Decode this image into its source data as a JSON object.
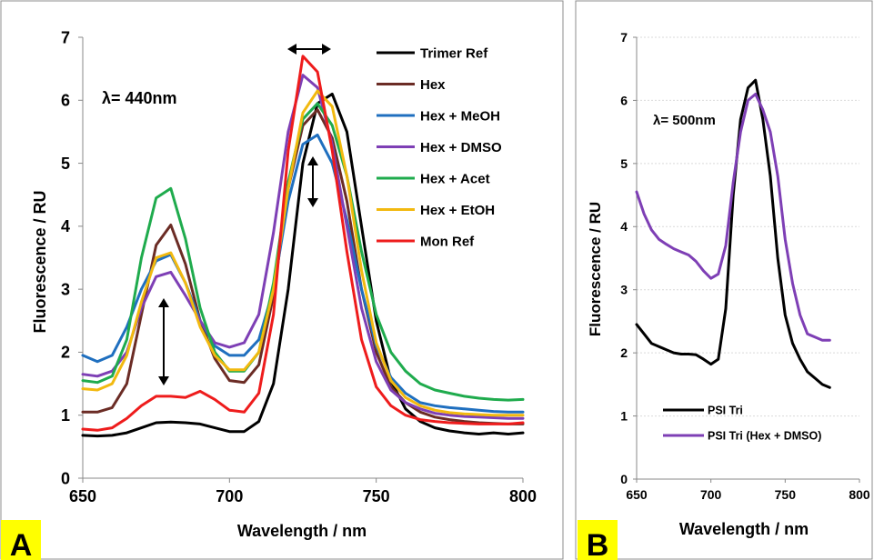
{
  "chart_data": [
    {
      "type": "line",
      "panel_label": "A",
      "badge_color": "#ffff00",
      "annotation": "λ= 440nm",
      "xlabel": "Wavelength / nm",
      "ylabel": "Fluorescence  / RU",
      "xlim": [
        650,
        800
      ],
      "ylim": [
        0,
        7
      ],
      "xticks": [
        650,
        700,
        750,
        800
      ],
      "yticks": [
        0,
        1,
        2,
        3,
        4,
        5,
        6,
        7
      ],
      "grid": false,
      "legend_position": "right",
      "series": [
        {
          "name": "Trimer Ref",
          "color": "#000000",
          "x": [
            650,
            655,
            660,
            665,
            670,
            675,
            680,
            685,
            690,
            695,
            700,
            705,
            710,
            715,
            720,
            725,
            730,
            735,
            740,
            745,
            750,
            755,
            760,
            765,
            770,
            775,
            780,
            785,
            790,
            795,
            800
          ],
          "y": [
            0.68,
            0.67,
            0.68,
            0.72,
            0.8,
            0.88,
            0.89,
            0.88,
            0.86,
            0.8,
            0.74,
            0.74,
            0.9,
            1.5,
            3.0,
            5.0,
            5.95,
            6.1,
            5.5,
            4.0,
            2.5,
            1.55,
            1.1,
            0.9,
            0.8,
            0.75,
            0.72,
            0.7,
            0.72,
            0.7,
            0.72
          ]
        },
        {
          "name": "Hex",
          "color": "#6b2c25",
          "x": [
            650,
            655,
            660,
            665,
            670,
            675,
            680,
            685,
            690,
            695,
            700,
            705,
            710,
            715,
            720,
            725,
            730,
            735,
            740,
            745,
            750,
            755,
            760,
            765,
            770,
            775,
            780,
            785,
            790,
            795,
            800
          ],
          "y": [
            1.05,
            1.05,
            1.12,
            1.5,
            2.6,
            3.7,
            4.02,
            3.4,
            2.5,
            1.9,
            1.55,
            1.52,
            1.8,
            2.9,
            4.6,
            5.6,
            5.85,
            5.4,
            4.4,
            3.0,
            2.0,
            1.45,
            1.2,
            1.05,
            0.97,
            0.93,
            0.9,
            0.88,
            0.87,
            0.86,
            0.86
          ]
        },
        {
          "name": "Hex + MeOH",
          "color": "#1f6fbf",
          "x": [
            650,
            655,
            660,
            665,
            670,
            675,
            680,
            685,
            690,
            695,
            700,
            705,
            710,
            715,
            720,
            725,
            730,
            735,
            740,
            745,
            750,
            755,
            760,
            765,
            770,
            775,
            780,
            785,
            790,
            795,
            800
          ],
          "y": [
            1.95,
            1.85,
            1.95,
            2.4,
            3.0,
            3.45,
            3.55,
            3.1,
            2.5,
            2.1,
            1.95,
            1.95,
            2.2,
            3.0,
            4.4,
            5.3,
            5.45,
            5.0,
            4.1,
            3.0,
            2.1,
            1.6,
            1.35,
            1.2,
            1.15,
            1.12,
            1.1,
            1.08,
            1.06,
            1.05,
            1.05
          ]
        },
        {
          "name": "Hex + DMSO",
          "color": "#7e3fb5",
          "x": [
            650,
            655,
            660,
            665,
            670,
            675,
            680,
            685,
            690,
            695,
            700,
            705,
            710,
            715,
            720,
            725,
            730,
            735,
            740,
            745,
            750,
            755,
            760,
            765,
            770,
            775,
            780,
            785,
            790,
            795,
            800
          ],
          "y": [
            1.65,
            1.62,
            1.7,
            2.0,
            2.7,
            3.2,
            3.27,
            2.9,
            2.5,
            2.15,
            2.08,
            2.15,
            2.6,
            3.9,
            5.5,
            6.4,
            6.2,
            5.3,
            4.0,
            2.7,
            1.85,
            1.4,
            1.2,
            1.1,
            1.03,
            1.0,
            0.98,
            0.97,
            0.96,
            0.95,
            0.95
          ]
        },
        {
          "name": "Hex + Acet",
          "color": "#1fab4d",
          "x": [
            650,
            655,
            660,
            665,
            670,
            675,
            680,
            685,
            690,
            695,
            700,
            705,
            710,
            715,
            720,
            725,
            730,
            735,
            740,
            745,
            750,
            755,
            760,
            765,
            770,
            775,
            780,
            785,
            790,
            795,
            800
          ],
          "y": [
            1.55,
            1.52,
            1.62,
            2.2,
            3.5,
            4.45,
            4.6,
            3.8,
            2.7,
            2.0,
            1.7,
            1.7,
            2.0,
            3.1,
            4.7,
            5.7,
            5.95,
            5.6,
            4.8,
            3.6,
            2.6,
            2.0,
            1.7,
            1.5,
            1.4,
            1.35,
            1.3,
            1.27,
            1.25,
            1.24,
            1.25
          ]
        },
        {
          "name": "Hex + EtOH",
          "color": "#f2b90f",
          "x": [
            650,
            655,
            660,
            665,
            670,
            675,
            680,
            685,
            690,
            695,
            700,
            705,
            710,
            715,
            720,
            725,
            730,
            735,
            740,
            745,
            750,
            755,
            760,
            765,
            770,
            775,
            780,
            785,
            790,
            795,
            800
          ],
          "y": [
            1.42,
            1.4,
            1.5,
            1.95,
            2.8,
            3.5,
            3.58,
            3.1,
            2.4,
            1.95,
            1.72,
            1.72,
            2.0,
            3.0,
            4.6,
            5.8,
            6.15,
            5.9,
            4.8,
            3.3,
            2.15,
            1.55,
            1.28,
            1.15,
            1.08,
            1.04,
            1.02,
            1.01,
            1.0,
            1.0,
            1.0
          ]
        },
        {
          "name": "Mon Ref",
          "color": "#ee1c1c",
          "x": [
            650,
            655,
            660,
            665,
            670,
            675,
            680,
            685,
            690,
            695,
            700,
            705,
            710,
            715,
            720,
            725,
            730,
            735,
            740,
            745,
            750,
            755,
            760,
            765,
            770,
            775,
            780,
            785,
            790,
            795,
            800
          ],
          "y": [
            0.78,
            0.76,
            0.8,
            0.95,
            1.15,
            1.3,
            1.3,
            1.28,
            1.38,
            1.25,
            1.08,
            1.05,
            1.35,
            2.6,
            5.2,
            6.7,
            6.45,
            5.2,
            3.6,
            2.2,
            1.45,
            1.15,
            1.0,
            0.93,
            0.9,
            0.88,
            0.87,
            0.86,
            0.86,
            0.86,
            0.88
          ]
        }
      ]
    },
    {
      "type": "line",
      "panel_label": "B",
      "badge_color": "#ffff00",
      "annotation": "λ= 500nm",
      "xlabel": "Wavelength / nm",
      "ylabel": "Fluorescence / RU",
      "xlim": [
        650,
        800
      ],
      "ylim": [
        0,
        7
      ],
      "xticks": [
        650,
        700,
        750,
        800
      ],
      "yticks": [
        0,
        1,
        2,
        3,
        4,
        5,
        6,
        7
      ],
      "grid": true,
      "legend_position": "bottom",
      "series": [
        {
          "name": "PSI Tri",
          "color": "#000000",
          "x": [
            650,
            655,
            660,
            665,
            670,
            675,
            680,
            685,
            690,
            695,
            700,
            705,
            710,
            715,
            720,
            725,
            730,
            735,
            740,
            745,
            750,
            755,
            760,
            765,
            770,
            775,
            780
          ],
          "y": [
            2.45,
            2.3,
            2.15,
            2.1,
            2.05,
            2.0,
            1.98,
            1.98,
            1.97,
            1.9,
            1.82,
            1.9,
            2.7,
            4.5,
            5.7,
            6.2,
            6.32,
            5.7,
            4.8,
            3.5,
            2.6,
            2.15,
            1.9,
            1.7,
            1.6,
            1.5,
            1.45
          ]
        },
        {
          "name": "PSI Tri (Hex + DMSO)",
          "color": "#7e3fb5",
          "x": [
            650,
            655,
            660,
            665,
            670,
            675,
            680,
            685,
            690,
            695,
            700,
            705,
            710,
            715,
            720,
            725,
            730,
            735,
            740,
            745,
            750,
            755,
            760,
            765,
            770,
            775,
            780
          ],
          "y": [
            4.55,
            4.2,
            3.95,
            3.8,
            3.72,
            3.65,
            3.6,
            3.55,
            3.45,
            3.3,
            3.18,
            3.25,
            3.7,
            4.7,
            5.5,
            6.0,
            6.1,
            5.85,
            5.5,
            4.8,
            3.8,
            3.1,
            2.6,
            2.3,
            2.25,
            2.2,
            2.2
          ]
        }
      ]
    }
  ]
}
